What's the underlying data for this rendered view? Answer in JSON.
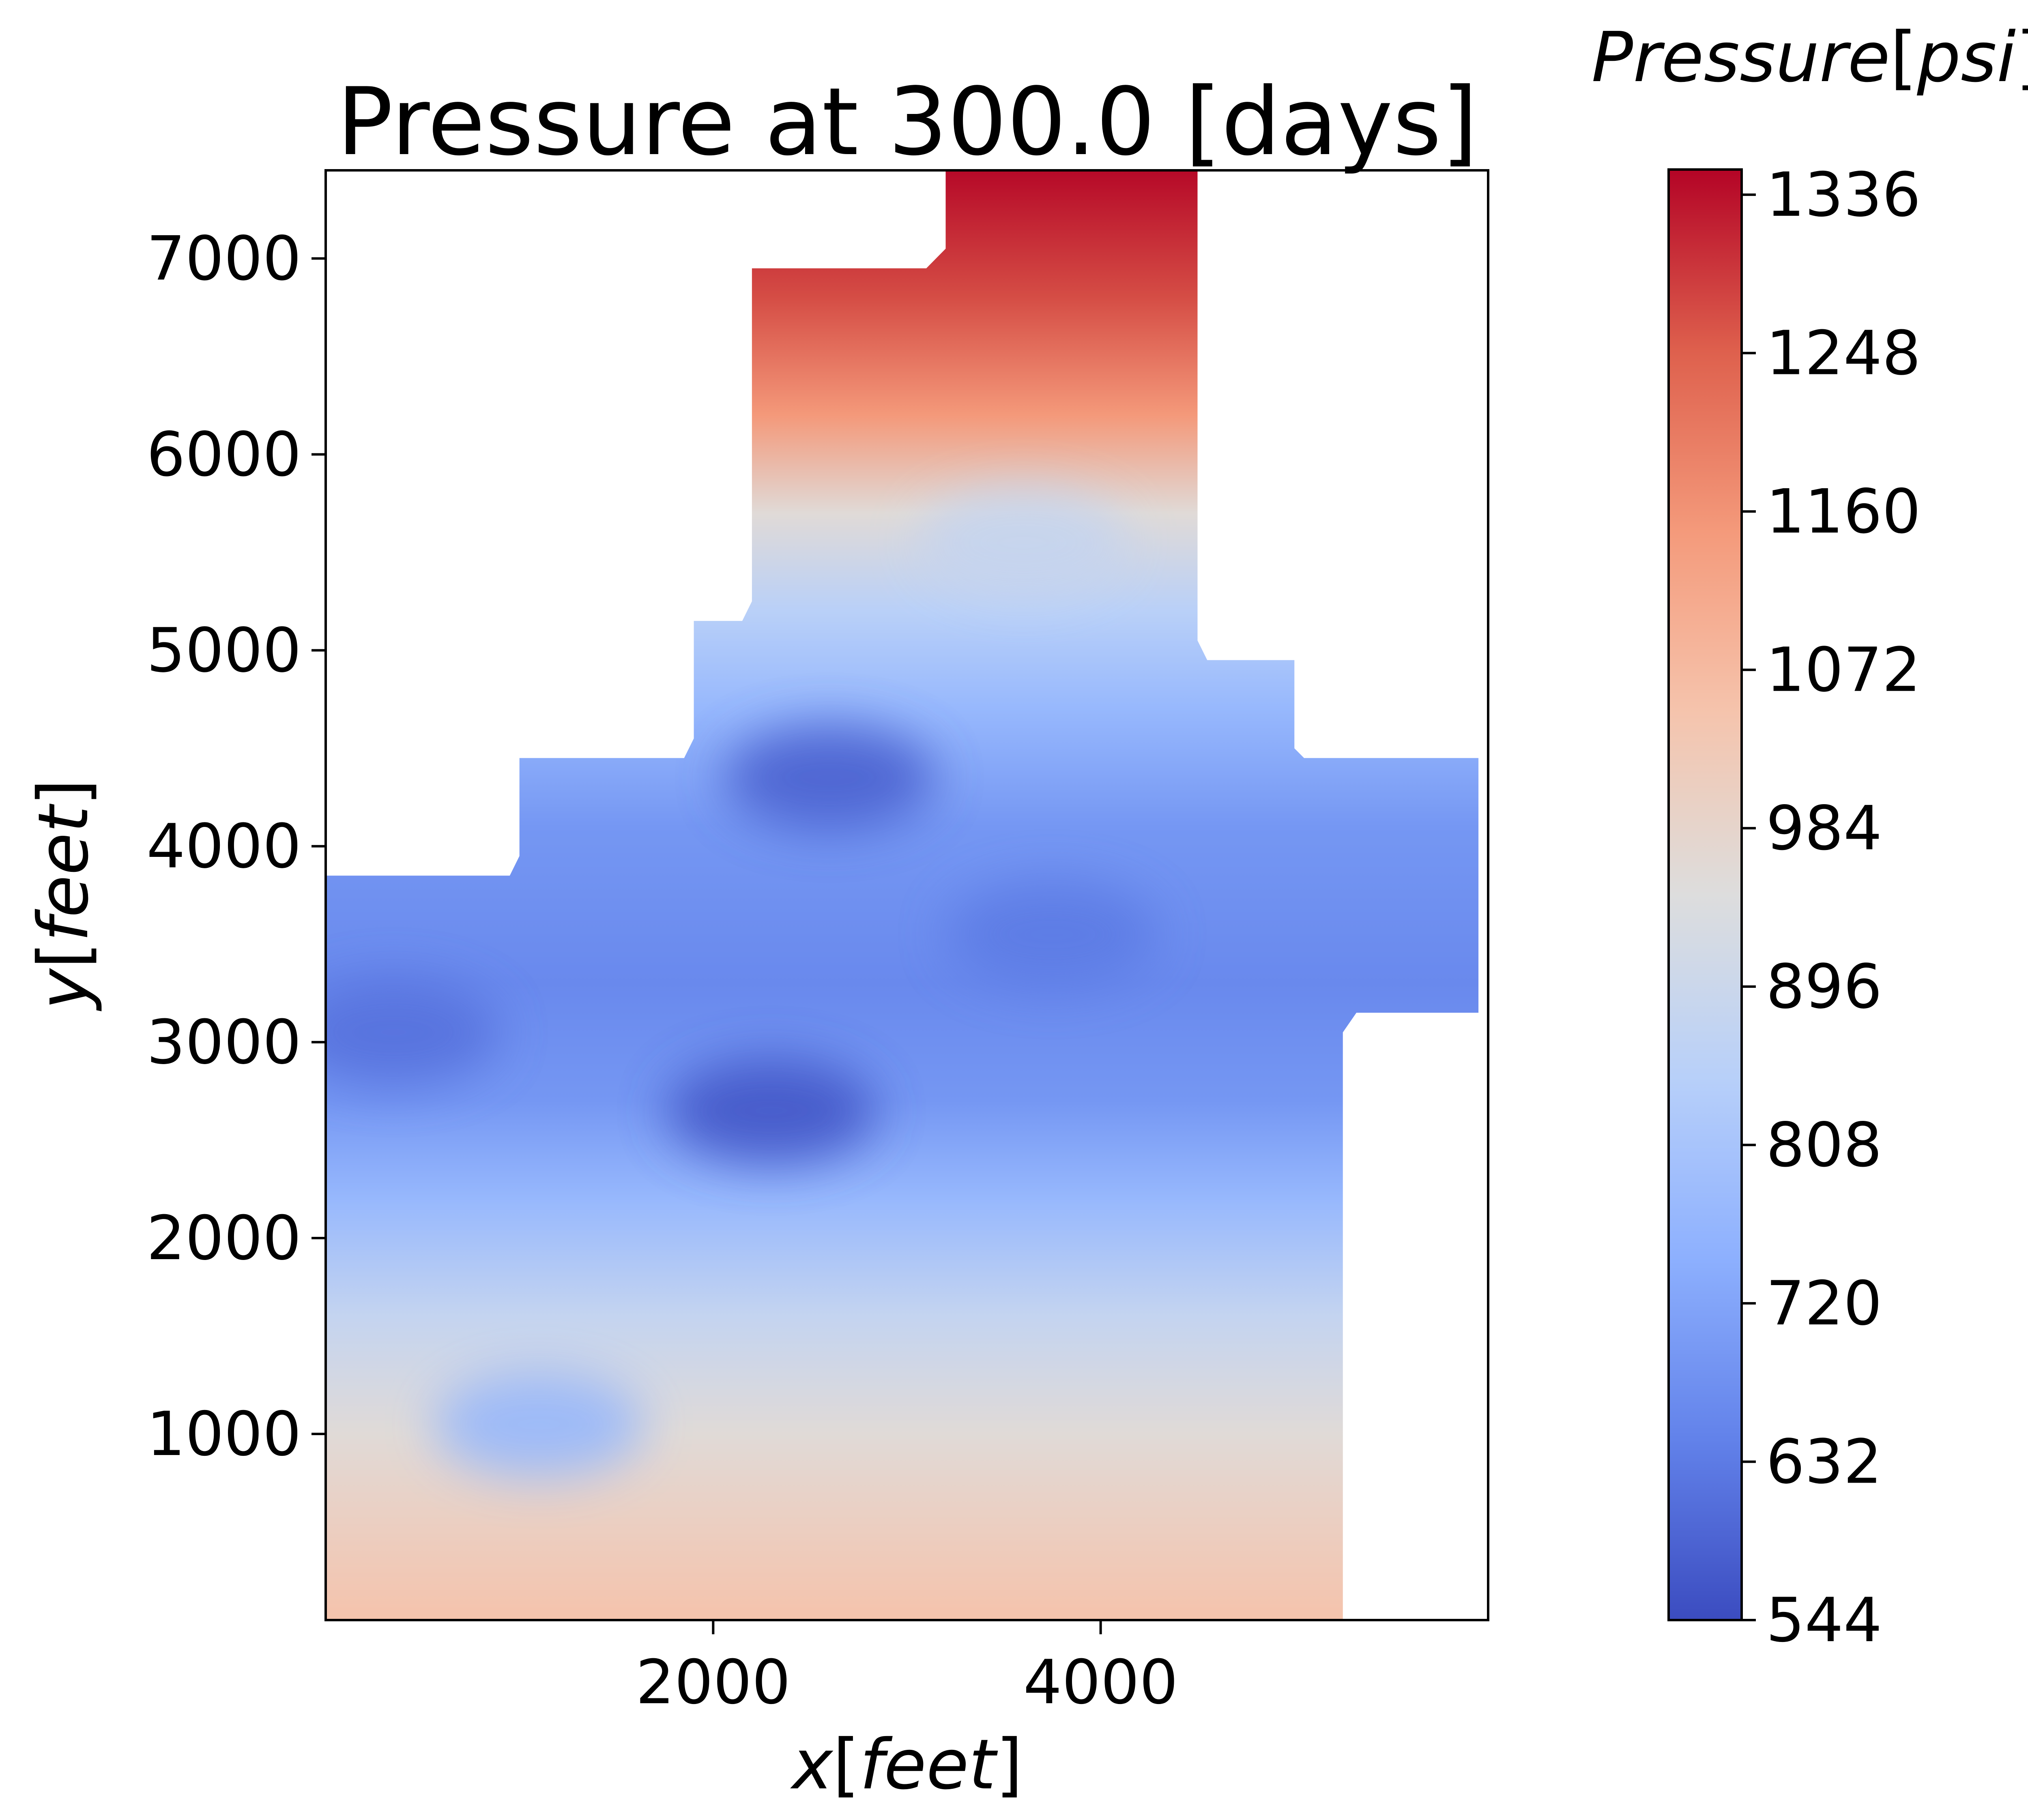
{
  "chart_data": {
    "type": "heatmap",
    "title": "Pressure at 300.0 [days]",
    "xlabel": {
      "var": "x",
      "bracket_open": "[",
      "unit": "feet",
      "bracket_close": "]"
    },
    "ylabel": {
      "var": "y",
      "bracket_open": "[",
      "unit": "feet",
      "bracket_close": "]"
    },
    "xlim": [
      0,
      6000
    ],
    "ylim": [
      50,
      7450
    ],
    "x_ticks": [
      2000,
      4000
    ],
    "y_ticks": [
      1000,
      2000,
      3000,
      4000,
      5000,
      6000,
      7000
    ],
    "x_tick_labels": [
      "2000",
      "4000"
    ],
    "y_tick_labels": [
      "1000",
      "2000",
      "3000",
      "4000",
      "5000",
      "6000",
      "7000"
    ],
    "colorbar": {
      "label": {
        "name": "Pressure",
        "bracket_open": "[",
        "unit": "psi",
        "bracket_close": "]"
      },
      "colormap": "coolwarm",
      "min": 544,
      "max": 1350,
      "ticks": [
        544,
        632,
        720,
        808,
        896,
        984,
        1072,
        1160,
        1248,
        1336
      ],
      "tick_labels": [
        "544",
        "632",
        "720",
        "808",
        "896",
        "984",
        "1072",
        "1160",
        "1248",
        "1336"
      ]
    },
    "domain_outline": [
      [
        0,
        50
      ],
      [
        5250,
        50
      ],
      [
        5250,
        3050
      ],
      [
        5320,
        3150
      ],
      [
        5950,
        3150
      ],
      [
        5950,
        4450
      ],
      [
        5050,
        4450
      ],
      [
        5000,
        4500
      ],
      [
        5000,
        4950
      ],
      [
        4550,
        4950
      ],
      [
        4500,
        5050
      ],
      [
        4500,
        7450
      ],
      [
        3200,
        7450
      ],
      [
        3200,
        7050
      ],
      [
        3100,
        6950
      ],
      [
        2200,
        6950
      ],
      [
        2200,
        5250
      ],
      [
        2150,
        5150
      ],
      [
        1900,
        5150
      ],
      [
        1900,
        4550
      ],
      [
        1850,
        4450
      ],
      [
        1000,
        4450
      ],
      [
        1000,
        3950
      ],
      [
        950,
        3850
      ],
      [
        0,
        3850
      ]
    ],
    "pressure_profile": [
      [
        50,
        1050
      ],
      [
        600,
        1000
      ],
      [
        1000,
        960
      ],
      [
        1600,
        880
      ],
      [
        2200,
        770
      ],
      [
        2700,
        690
      ],
      [
        3300,
        660
      ],
      [
        4100,
        690
      ],
      [
        4700,
        770
      ],
      [
        5200,
        850
      ],
      [
        5700,
        960
      ],
      [
        6200,
        1150
      ],
      [
        6800,
        1270
      ],
      [
        7450,
        1345
      ]
    ],
    "low_pressure_spots": [
      {
        "x": 2300,
        "y": 2650,
        "value": 555
      },
      {
        "x": 2600,
        "y": 4350,
        "value": 575
      },
      {
        "x": 350,
        "y": 3050,
        "value": 610
      },
      {
        "x": 3750,
        "y": 3550,
        "value": 630
      },
      {
        "x": 1100,
        "y": 1050,
        "value": 760
      },
      {
        "x": 3600,
        "y": 5550,
        "value": 880
      }
    ]
  }
}
